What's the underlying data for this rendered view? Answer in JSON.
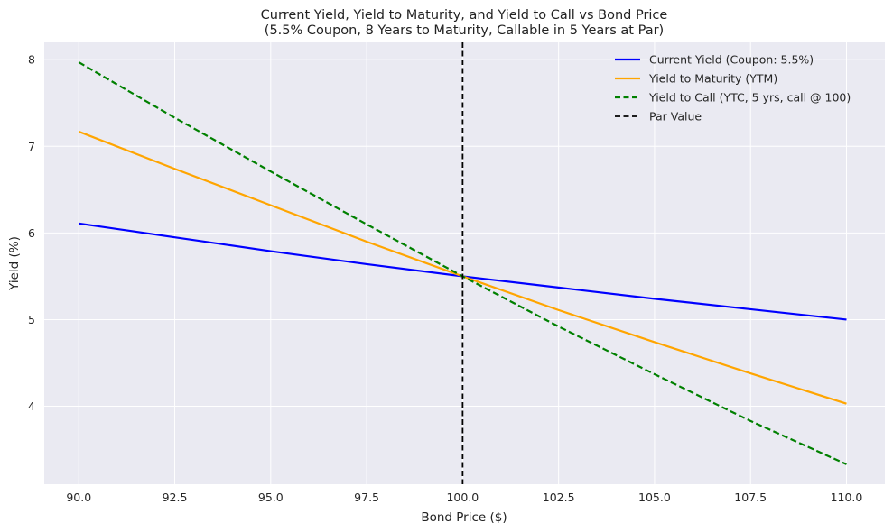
{
  "chart_data": {
    "type": "line",
    "title": "Current Yield, Yield to Maturity, and Yield to Call vs Bond Price",
    "subtitle": "(5.5% Coupon, 8 Years to Maturity, Callable in 5 Years at Par)",
    "xlabel": "Bond Price ($)",
    "ylabel": "Yield (%)",
    "xlim": [
      89.1,
      111.0
    ],
    "ylim": [
      3.1,
      8.2
    ],
    "xticks": [
      90.0,
      92.5,
      95.0,
      97.5,
      100.0,
      102.5,
      105.0,
      107.5,
      110.0
    ],
    "xtick_labels": [
      "90.0",
      "92.5",
      "95.0",
      "97.5",
      "100.0",
      "102.5",
      "105.0",
      "107.5",
      "110.0"
    ],
    "yticks": [
      4,
      5,
      6,
      7,
      8
    ],
    "ytick_labels": [
      "4",
      "5",
      "6",
      "7",
      "8"
    ],
    "grid": true,
    "legend_position": "top-right",
    "series": [
      {
        "name": "Current Yield (Coupon: 5.5%)",
        "color": "#0000ff",
        "style": "solid",
        "x": [
          90,
          92.5,
          95,
          97.5,
          100,
          102.5,
          105,
          107.5,
          110
        ],
        "y": [
          6.11,
          5.95,
          5.79,
          5.64,
          5.5,
          5.37,
          5.24,
          5.12,
          5.0
        ]
      },
      {
        "name": "Yield to Maturity (YTM)",
        "color": "#ffa500",
        "style": "solid",
        "x": [
          90,
          92.5,
          95,
          97.5,
          100,
          102.5,
          105,
          107.5,
          110
        ],
        "y": [
          7.17,
          6.74,
          6.32,
          5.9,
          5.5,
          5.11,
          4.74,
          4.38,
          4.03
        ]
      },
      {
        "name": "Yield to Call (YTC, 5 yrs, call @ 100)",
        "color": "#008000",
        "style": "dashed",
        "x": [
          90,
          92.5,
          95,
          97.5,
          100,
          102.5,
          105,
          107.5,
          110
        ],
        "y": [
          7.97,
          7.33,
          6.71,
          6.1,
          5.5,
          4.92,
          4.37,
          3.83,
          3.33
        ]
      }
    ],
    "vlines": [
      {
        "name": "Par Value",
        "x": 100,
        "color": "#000000",
        "style": "dashed"
      }
    ]
  }
}
